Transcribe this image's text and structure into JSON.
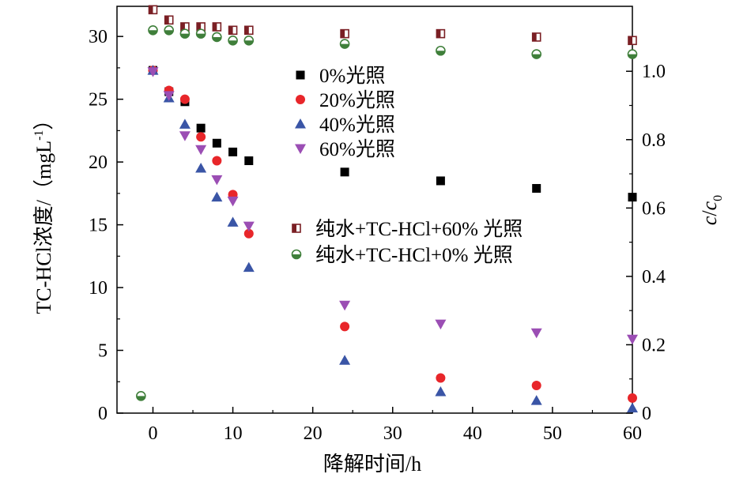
{
  "chart_data": {
    "type": "scatter",
    "title": "",
    "xlabel": "降解时间/h",
    "ylabel_left": "TC-HCl浓度/（mgL-1）",
    "ylabel_left_parts": {
      "main": "TC-HCl浓度/（mgL",
      "sup": "-1",
      "close": "）"
    },
    "ylabel_right": "c/c0",
    "ylabel_right_parts": {
      "c": "c",
      "slash": "/",
      "c0": "c",
      "sub": "0"
    },
    "xlim": [
      -4.5,
      60
    ],
    "ylim_left": [
      0,
      32.4
    ],
    "ylim_right": [
      0,
      1.19
    ],
    "x_ticks": [
      0,
      10,
      20,
      30,
      40,
      50,
      60
    ],
    "y_left_ticks": [
      0,
      5,
      10,
      15,
      20,
      25,
      30
    ],
    "y_right_ticks": [
      "0",
      "0.2",
      "0.4",
      "0.6",
      "0.8",
      "1.0"
    ],
    "y_right_tick_values": [
      0,
      0.2,
      0.4,
      0.6,
      0.8,
      1.0
    ],
    "legend_position": "center",
    "series": [
      {
        "name": "0%光照",
        "marker": "square",
        "color": "#000000",
        "axis": "left",
        "x": [
          0,
          2,
          4,
          6,
          8,
          10,
          12,
          24,
          36,
          48,
          60
        ],
        "y": [
          27.3,
          25.6,
          24.8,
          22.7,
          21.5,
          20.8,
          20.1,
          19.2,
          18.5,
          17.9,
          17.2
        ]
      },
      {
        "name": "20%光照",
        "marker": "circle",
        "color": "#e8262a",
        "axis": "left",
        "x": [
          0,
          2,
          4,
          6,
          8,
          10,
          12,
          24,
          36,
          48,
          60
        ],
        "y": [
          27.3,
          25.7,
          25.0,
          22.0,
          20.1,
          17.4,
          14.3,
          6.9,
          2.8,
          2.2,
          1.2
        ]
      },
      {
        "name": "40%光照",
        "marker": "triangle-up",
        "color": "#3a55a6",
        "axis": "left",
        "x": [
          0,
          2,
          4,
          6,
          8,
          10,
          12,
          24,
          36,
          48,
          60
        ],
        "y": [
          27.3,
          25.1,
          23.0,
          19.5,
          17.2,
          15.2,
          11.6,
          4.2,
          1.7,
          1.0,
          0.4
        ]
      },
      {
        "name": "60%光照",
        "marker": "triangle-down",
        "color": "#9b4eb4",
        "axis": "left",
        "x": [
          0,
          2,
          4,
          6,
          8,
          10,
          12,
          24,
          36,
          48,
          60
        ],
        "y": [
          27.2,
          25.3,
          22.1,
          21.0,
          18.6,
          16.9,
          14.9,
          8.6,
          7.1,
          6.4,
          5.9
        ]
      },
      {
        "name": "纯水+TC-HCl+60% 光照",
        "marker": "half-square",
        "color": "#7a1f24",
        "axis": "right",
        "x": [
          0,
          2,
          4,
          6,
          8,
          10,
          12,
          24,
          36,
          48,
          60
        ],
        "y": [
          1.18,
          1.15,
          1.13,
          1.13,
          1.13,
          1.12,
          1.12,
          1.11,
          1.11,
          1.1,
          1.09
        ]
      },
      {
        "name": "纯水+TC-HCl+0% 光照",
        "marker": "half-circle",
        "color": "#3f7f3a",
        "axis": "right",
        "x": [
          -1.5,
          0,
          2,
          4,
          6,
          8,
          10,
          12,
          24,
          36,
          48,
          60
        ],
        "y": [
          0.05,
          1.12,
          1.12,
          1.11,
          1.11,
          1.1,
          1.09,
          1.09,
          1.08,
          1.06,
          1.05,
          1.05
        ]
      }
    ]
  }
}
